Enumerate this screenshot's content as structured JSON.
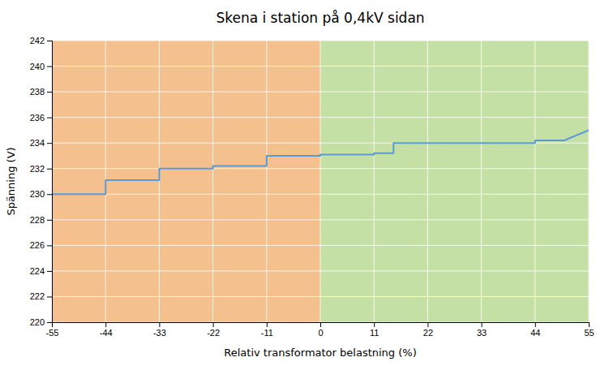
{
  "chart_data": {
    "type": "line",
    "title": "Skena i station på 0,4kV sidan",
    "x_label": "Relativ transformator belastning (%)",
    "y_label": "Spänning (V)",
    "x": [
      -55,
      -44,
      -44,
      -41,
      -33,
      -33,
      -27,
      -22,
      -22,
      -18,
      -11,
      -11,
      -5,
      0,
      0,
      5,
      11,
      11,
      15,
      15,
      22,
      44,
      44,
      50,
      55
    ],
    "values": [
      230.0,
      230.0,
      231.1,
      231.1,
      231.1,
      232.0,
      232.0,
      232.0,
      232.2,
      232.2,
      232.2,
      233.0,
      233.0,
      233.0,
      233.1,
      233.1,
      233.1,
      233.2,
      233.2,
      234.0,
      234.0,
      234.0,
      234.2,
      234.2,
      235.0
    ],
    "color": "#5B9BD5",
    "bands": [
      {
        "x0": -55,
        "x1": 0,
        "color": "#F4C08E"
      },
      {
        "x0": 0,
        "x1": 55,
        "color": "#C5E0A4"
      }
    ],
    "xlim": [
      -55,
      55
    ],
    "ylim": [
      220,
      242
    ],
    "xticks": [
      -55,
      -44,
      -33,
      -22,
      -11,
      0,
      11,
      22,
      33,
      44,
      55
    ],
    "yticks": [
      220,
      222,
      224,
      226,
      228,
      230,
      232,
      234,
      236,
      238,
      240,
      242
    ],
    "grid": true
  }
}
